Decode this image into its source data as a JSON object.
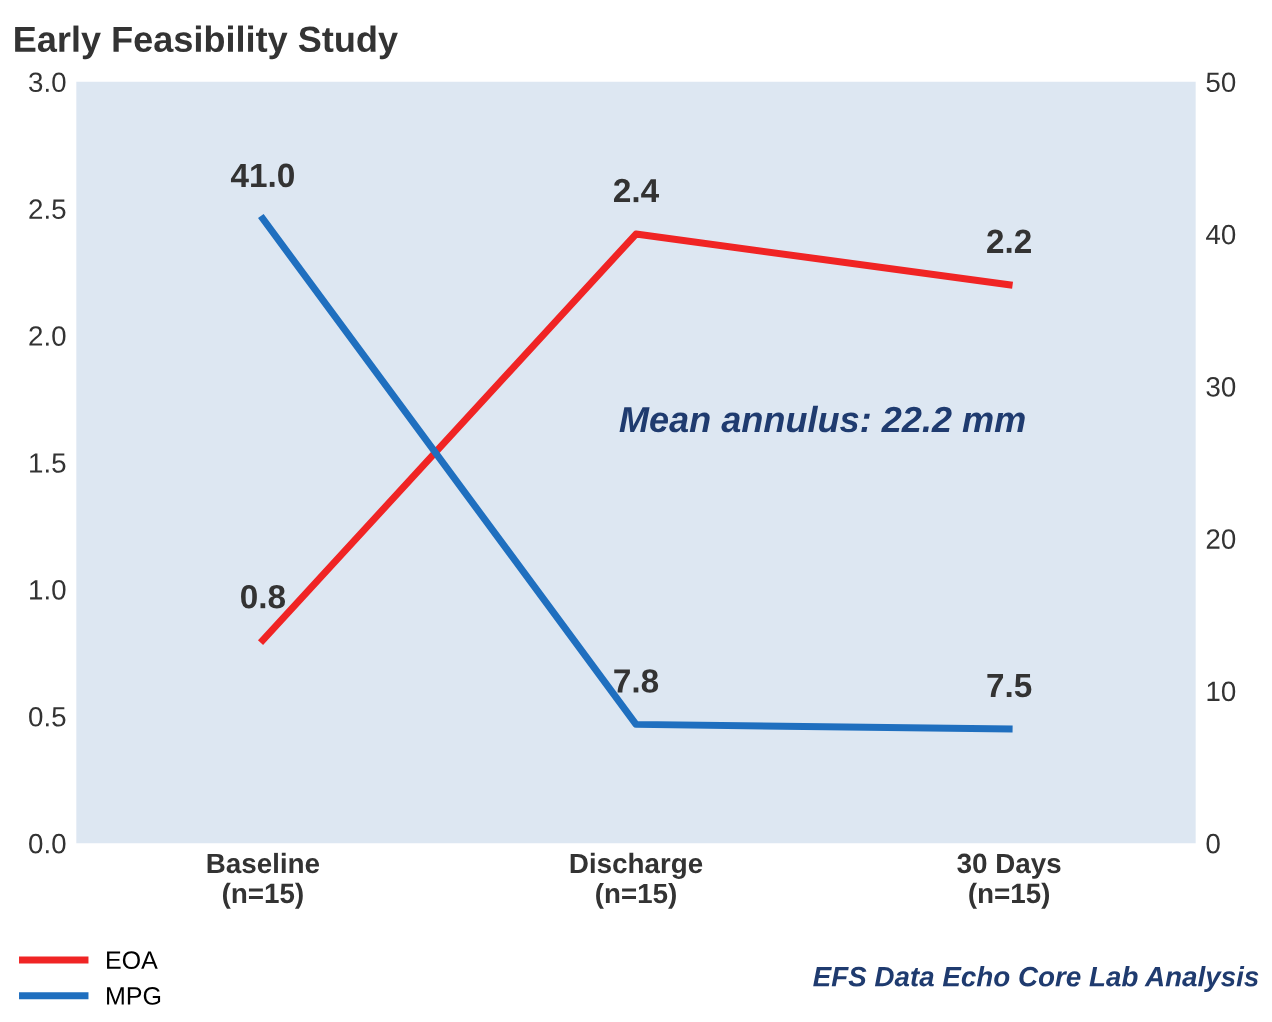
{
  "chart_data": {
    "type": "line",
    "title": "Early Feasibility Study",
    "categories": [
      "Baseline\n(n=15)",
      "Discharge\n(n=15)",
      "30 Days\n(n=15)"
    ],
    "series": [
      {
        "name": "EOA",
        "color": "#f02424",
        "values": [
          0.8,
          2.4,
          2.2
        ],
        "value_labels": [
          "0.8",
          "2.4",
          "2.2"
        ]
      },
      {
        "name": "MPG",
        "color": "#1f6fbf",
        "values": [
          41.0,
          7.8,
          7.5
        ],
        "axis": "y2",
        "value_labels": [
          "41.0",
          "7.8",
          "7.5"
        ]
      }
    ],
    "ylim": [
      0,
      3
    ],
    "yticks": [
      {
        "value": 0,
        "label": "0.0"
      },
      {
        "value": 0.5,
        "label": "0.5"
      },
      {
        "value": 1,
        "label": "1.0"
      },
      {
        "value": 1.5,
        "label": "1.5"
      },
      {
        "value": 2,
        "label": "2.0"
      },
      {
        "value": 2.5,
        "label": "2.5"
      },
      {
        "value": 3,
        "label": "3.0"
      }
    ],
    "y2lim": [
      0,
      50
    ],
    "y2ticks": [
      0,
      10,
      20,
      30,
      40,
      50
    ],
    "annotations": [
      "Mean annulus: 22.2 mm",
      "EFS Data Echo Core Lab Analysis"
    ],
    "legend": "bottom left",
    "grid": false,
    "marker": "none",
    "line_style": "solid"
  }
}
